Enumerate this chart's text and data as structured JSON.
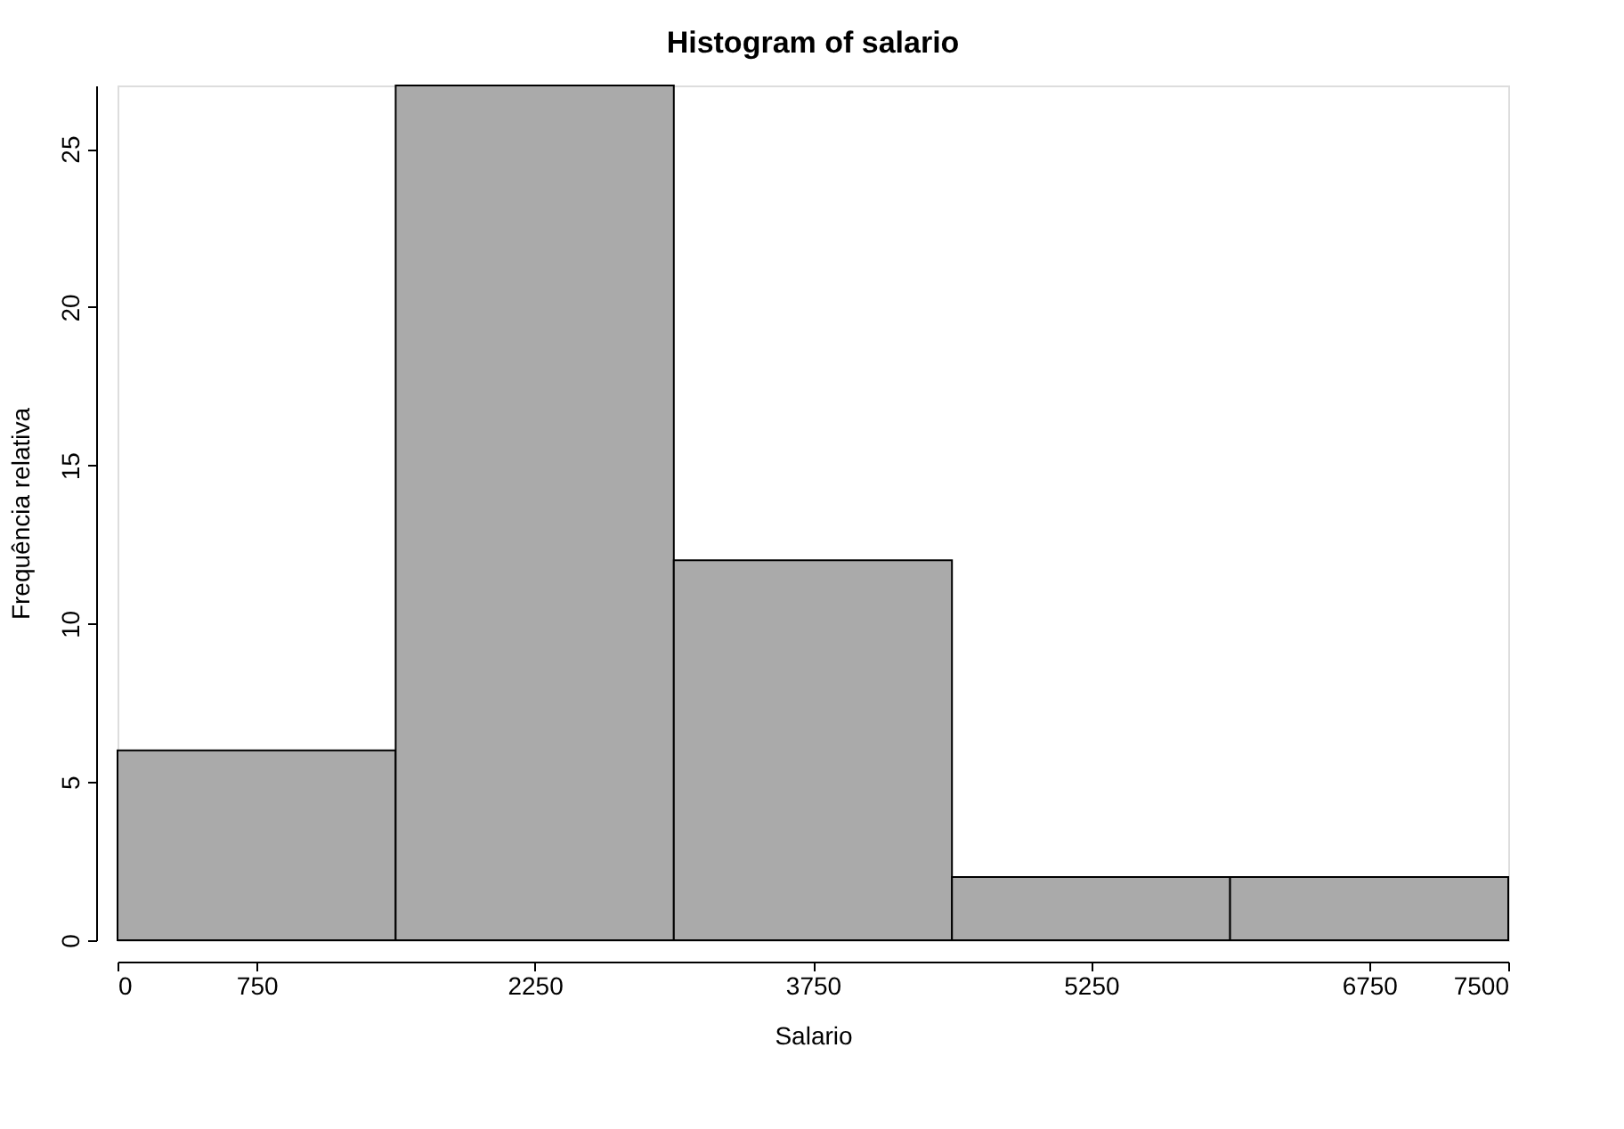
{
  "chart_data": {
    "type": "histogram",
    "title": "Histogram of salario",
    "xlabel": "Salario",
    "ylabel": "Frequência relativa",
    "bins": [
      0,
      1500,
      3000,
      4500,
      6000,
      7500
    ],
    "values": [
      6,
      27,
      12,
      2,
      2
    ],
    "color": "#aaaaaa",
    "xlim": [
      0,
      7500
    ],
    "xticks": [
      0,
      750,
      2250,
      3750,
      5250,
      6750,
      7500
    ],
    "ylim": [
      0,
      27
    ],
    "yticks": [
      0,
      5,
      10,
      15,
      20,
      25
    ],
    "grid": false
  }
}
